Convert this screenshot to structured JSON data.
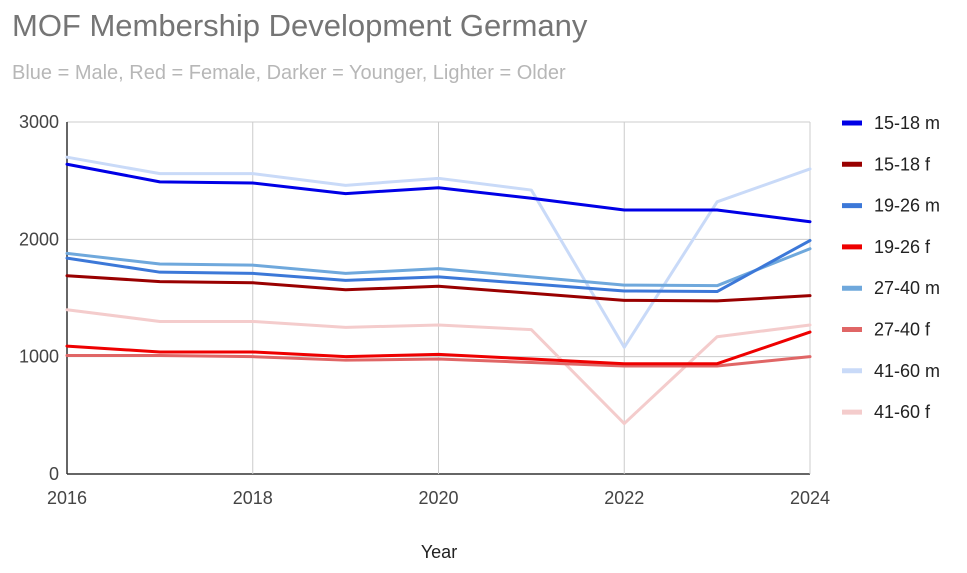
{
  "chart_data": {
    "type": "line",
    "title": "MOF Membership Development Germany",
    "subtitle": "Blue = Male, Red = Female, Darker = Younger, Lighter = Older",
    "xlabel": "Year",
    "ylabel": "",
    "xlim": [
      2016,
      2024
    ],
    "ylim": [
      0,
      3000
    ],
    "x_ticks": [
      2016,
      2018,
      2020,
      2022,
      2024
    ],
    "y_ticks": [
      0,
      1000,
      2000,
      3000
    ],
    "grid": true,
    "legend_position": "right",
    "x": [
      2016,
      2017,
      2018,
      2019,
      2020,
      2021,
      2022,
      2023,
      2024
    ],
    "series": [
      {
        "name": "15-18 m",
        "color": "#0000e6",
        "values": [
          2640,
          2490,
          2480,
          2390,
          2440,
          2350,
          2250,
          2250,
          2150
        ]
      },
      {
        "name": "15-18 f",
        "color": "#990000",
        "values": [
          1690,
          1640,
          1630,
          1570,
          1600,
          1540,
          1480,
          1475,
          1520
        ]
      },
      {
        "name": "19-26 m",
        "color": "#3c78d8",
        "values": [
          1840,
          1720,
          1710,
          1650,
          1680,
          1620,
          1560,
          1555,
          1990
        ]
      },
      {
        "name": "19-26 f",
        "color": "#ee0000",
        "values": [
          1090,
          1040,
          1040,
          1000,
          1020,
          980,
          940,
          940,
          1210
        ]
      },
      {
        "name": "27-40 m",
        "color": "#6fa8dc",
        "values": [
          1880,
          1790,
          1780,
          1710,
          1750,
          1680,
          1610,
          1605,
          1920
        ]
      },
      {
        "name": "27-40 f",
        "color": "#e06666",
        "values": [
          1010,
          1010,
          1000,
          970,
          980,
          950,
          920,
          920,
          1000
        ]
      },
      {
        "name": "41-60 m",
        "color": "#c9daf8",
        "values": [
          2700,
          2560,
          2560,
          2460,
          2520,
          2420,
          1080,
          2320,
          2600
        ]
      },
      {
        "name": "41-60 f",
        "color": "#f4cccc",
        "values": [
          1400,
          1300,
          1300,
          1250,
          1270,
          1230,
          430,
          1170,
          1270
        ]
      }
    ]
  }
}
